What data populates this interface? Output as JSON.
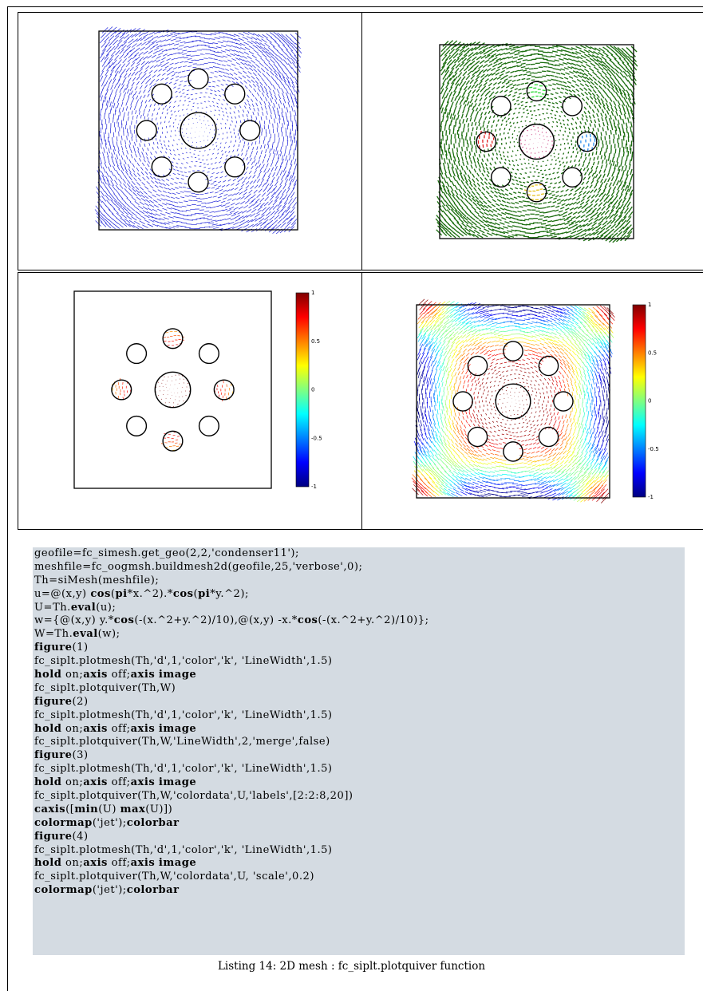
{
  "figures": [
    {
      "id": "figure-1",
      "description_colors": {
        "arrow": "#1e23d8",
        "mesh": "#000000"
      }
    },
    {
      "id": "figure-2",
      "description_colors": {
        "arrow": "#1c6e10",
        "holes": [
          "#e02020",
          "#2a8cf0",
          "#e6c21a",
          "#2cdc36",
          "#c8347a"
        ]
      }
    },
    {
      "id": "figure-3",
      "colorbar_ticks": [
        "1",
        "0.5",
        "0",
        "-0.5",
        "-1"
      ]
    },
    {
      "id": "figure-4",
      "colorbar_ticks": [
        "1",
        "0.5",
        "0",
        "-0.5",
        "-1"
      ]
    }
  ],
  "code_lines": [
    "geofile=fc_simesh.get_geo(2,2,'condenser11');",
    "meshfile=fc_oogmsh.buildmesh2d(geofile,25,'verbose',0);",
    "Th=siMesh(meshfile);",
    "u=@(x,y) cos(pi*x.^2).*cos(pi*y.^2);",
    "U=Th.eval(u);",
    "w={@(x,y) y.*cos(-(x.^2+y.^2)/10),@(x,y) -x.*cos(-(x.^2+y.^2)/10)};",
    "W=Th.eval(w);",
    "figure(1)",
    "fc_siplt.plotmesh(Th,'d',1,'color','k', 'LineWidth',1.5)",
    "hold on;axis off;axis image",
    "fc_siplt.plotquiver(Th,W)",
    "figure(2)",
    "fc_siplt.plotmesh(Th,'d',1,'color','k', 'LineWidth',1.5)",
    "hold on;axis off;axis image",
    "fc_siplt.plotquiver(Th,W,'LineWidth',2,'merge',false)",
    "figure(3)",
    "fc_siplt.plotmesh(Th,'d',1,'color','k', 'LineWidth',1.5)",
    "hold on;axis off;axis image",
    "fc_siplt.plotquiver(Th,W,'colordata',U,'labels',[2:2:8,20])",
    "caxis([min(U) max(U)])",
    "colormap('jet');colorbar",
    "figure(4)",
    "fc_siplt.plotmesh(Th,'d',1,'color','k', 'LineWidth',1.5)",
    "hold on;axis off;axis image",
    "fc_siplt.plotquiver(Th,W,'colordata',U, 'scale',0.2)",
    "colormap('jet');colorbar"
  ],
  "caption": "Listing 14:  2D mesh :  fc_siplt.plotquiver function"
}
